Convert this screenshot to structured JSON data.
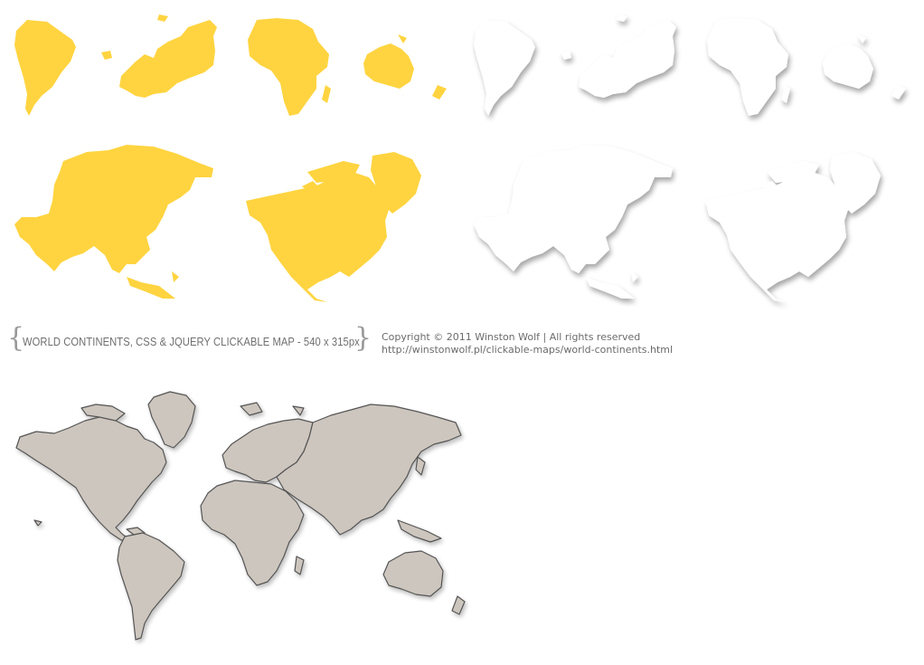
{
  "header": {
    "title": "WORLD CONTINENTS, CSS & JQUERY CLICKABLE MAP - 540 x 315px",
    "copyright": "Copyright © 2011 Winston Wolf  |  All rights reserved",
    "url": "http://winstonwolf.pl/clickable-maps/world-continents.html"
  },
  "colors": {
    "highlight_fill": "#FFD440",
    "shadow_fill": "#FFFFFF",
    "map_fill": "#CDC6BE",
    "map_stroke": "#555555"
  },
  "sprites": {
    "highlighted": [
      "south-america",
      "europe",
      "africa",
      "australia",
      "asia",
      "north-america"
    ],
    "shadowed": [
      "south-america",
      "europe",
      "africa",
      "australia",
      "asia",
      "north-america"
    ]
  }
}
